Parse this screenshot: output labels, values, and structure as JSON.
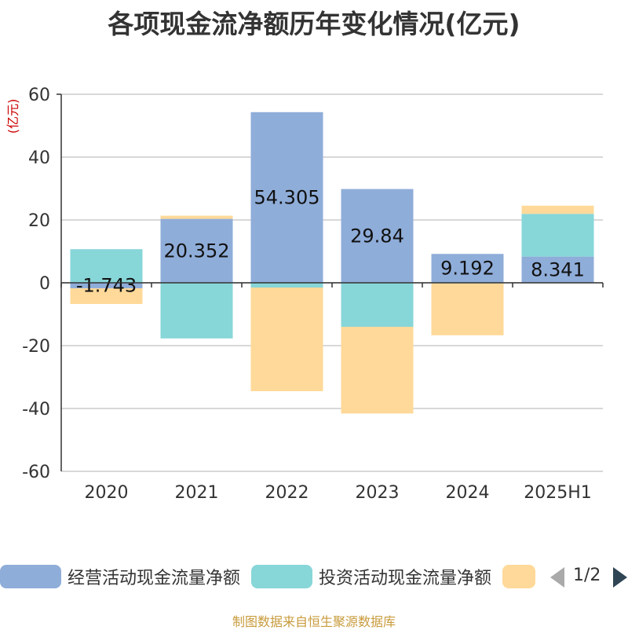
{
  "chart_data": {
    "type": "bar",
    "stacked": true,
    "title": "各项现金流净额历年变化情况(亿元)",
    "ylabel": "(亿元)",
    "categories": [
      "2020",
      "2021",
      "2022",
      "2023",
      "2024",
      "2025H1"
    ],
    "ylim": [
      -60,
      60
    ],
    "yticks": [
      60,
      40,
      20,
      0,
      -20,
      -40,
      -60
    ],
    "grid": true,
    "series": [
      {
        "name": "经营活动现金流量净额",
        "color": "#8fadd9",
        "values": [
          -1.743,
          20.352,
          54.305,
          29.84,
          9.192,
          8.341
        ],
        "labels": [
          "-1.743",
          "20.352",
          "54.305",
          "29.84",
          "9.192",
          "8.341"
        ]
      },
      {
        "name": "投资活动现金流量净额",
        "color": "#87d6d8",
        "values": [
          10.7,
          -17.7,
          -1.5,
          -14.0,
          -0.2,
          13.6
        ]
      },
      {
        "name": "",
        "color": "#ffd999",
        "values": [
          -5.0,
          1.0,
          -33.0,
          -27.6,
          -16.5,
          2.6
        ]
      }
    ]
  },
  "legend": {
    "items": [
      {
        "name": "经营活动现金流量净额",
        "color": "#8fadd9"
      },
      {
        "name": "投资活动现金流量净额",
        "color": "#87d6d8"
      },
      {
        "name": "",
        "color": "#ffd999"
      }
    ],
    "page": "1/2"
  },
  "source": "制图数据来自恒生聚源数据库"
}
